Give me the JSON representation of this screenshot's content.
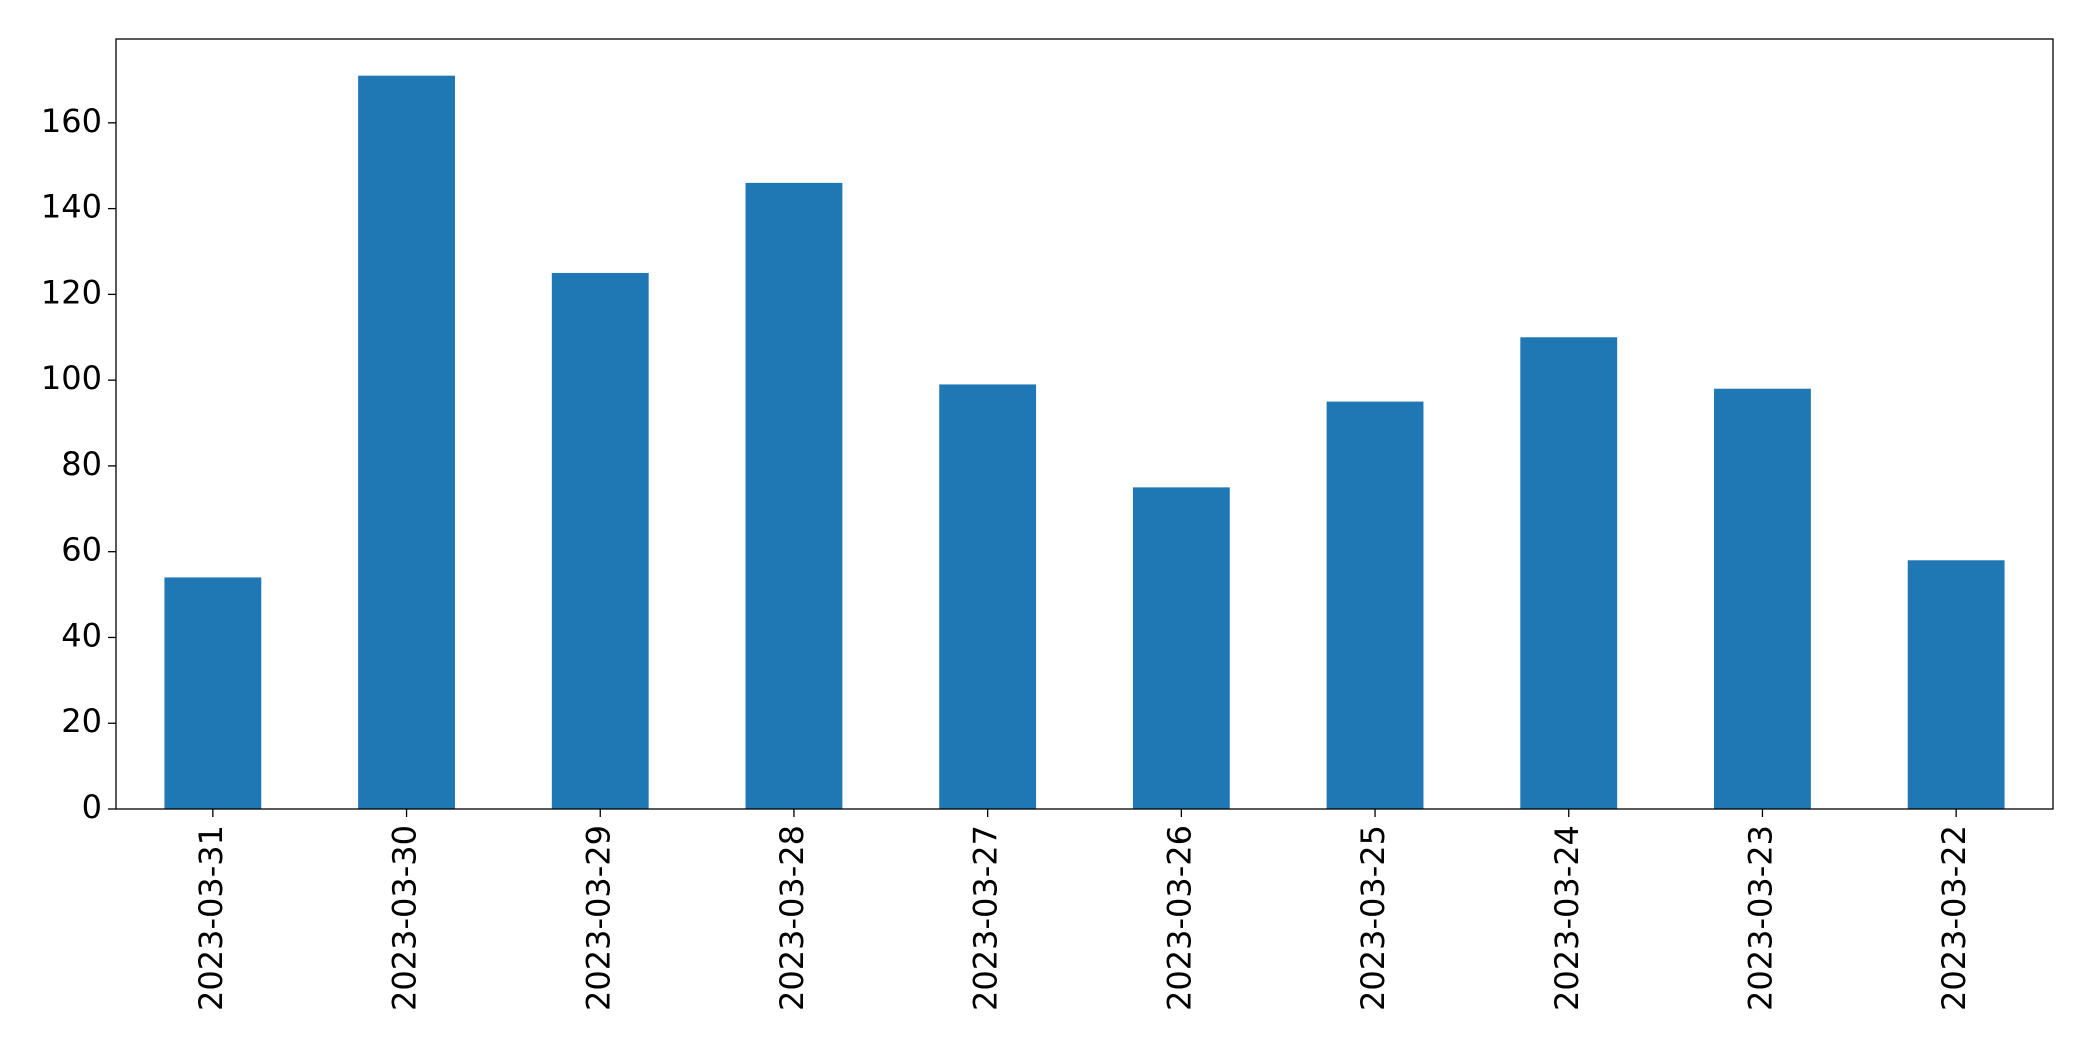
{
  "chart_data": {
    "type": "bar",
    "categories": [
      "2023-03-31",
      "2023-03-30",
      "2023-03-29",
      "2023-03-28",
      "2023-03-27",
      "2023-03-26",
      "2023-03-25",
      "2023-03-24",
      "2023-03-23",
      "2023-03-22"
    ],
    "values": [
      54,
      171,
      125,
      146,
      99,
      75,
      95,
      110,
      98,
      58
    ],
    "color": "#1f77b4",
    "ylim": [
      0,
      179.55
    ],
    "yticks": [
      0,
      20,
      40,
      60,
      80,
      100,
      120,
      140,
      160
    ],
    "grid": false
  }
}
